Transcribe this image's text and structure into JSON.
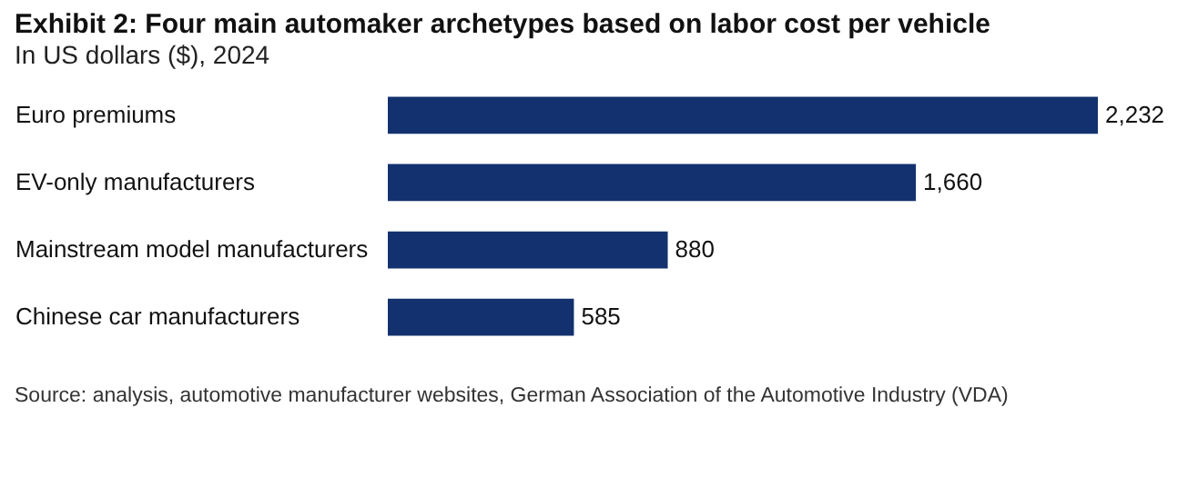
{
  "chart_data": {
    "type": "bar",
    "orientation": "horizontal",
    "title": "Exhibit 2: Four main automaker archetypes based on labor cost per vehicle",
    "subtitle": "In US dollars ($), 2024",
    "categories": [
      "Euro premiums",
      "EV-only manufacturers",
      "Mainstream model manufacturers",
      "Chinese car manufacturers"
    ],
    "values": [
      2232,
      1660,
      880,
      585
    ],
    "value_labels": [
      "2,232",
      "1,660",
      "880",
      "585"
    ],
    "color": "#13316e",
    "grid": false,
    "annotations": [
      "Source: analysis, automotive manufacturer websites, German Association of the Automotive Industry (VDA)"
    ]
  }
}
